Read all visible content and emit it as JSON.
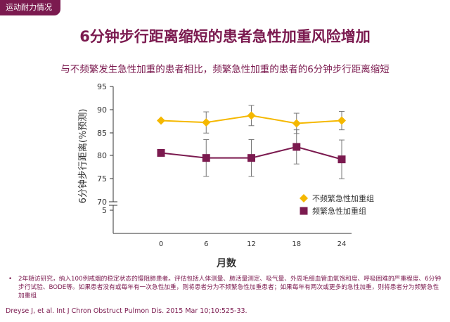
{
  "header_tag": "运动耐力情况",
  "slide_title": "6分钟步行距离缩短的患者急性加重风险增加",
  "subtitle": "与不频繁发生急性加重的患者相比，频繁急性加重的患者的6分钟步行距离缩短",
  "chart_data": {
    "type": "line",
    "xlabel": "月数",
    "ylabel": "6分钟步行距离(%预测)",
    "x": [
      0,
      6,
      12,
      18,
      24
    ],
    "x_ticks": [
      "0",
      "6",
      "12",
      "18",
      "24"
    ],
    "y_ticks": [
      "95",
      "90",
      "85",
      "80",
      "75",
      "70",
      "5"
    ],
    "y_axis_break": true,
    "ylim": [
      70,
      95
    ],
    "grid": false,
    "legend_position": "right",
    "series": [
      {
        "name": "不频繁急性加重组",
        "marker": "diamond",
        "color": "#f5b800",
        "values": [
          87.6,
          87.2,
          88.7,
          87.0,
          87.6
        ],
        "error": [
          0.0,
          2.3,
          2.2,
          2.2,
          2.0
        ]
      },
      {
        "name": "频繁急性加重组",
        "marker": "square",
        "color": "#7b1a4f",
        "values": [
          80.6,
          79.5,
          79.5,
          81.9,
          79.2
        ],
        "error": [
          0.0,
          4.0,
          4.0,
          3.7,
          4.2
        ]
      }
    ]
  },
  "footnote_bullet": "•",
  "footnote": "2年随访研究，纳入100例戒烟的稳定状态的慢阻肺患者。评估包括人体测量、肺活量测定、吸气量、外周毛细血管血氧饱和度、呼吸困难的严重程度、6分钟步行试验、BODE等。如果患者没有或每年有一次急性加重，则将患者分为不频繁急性加重患者；如果每年有两次或更多的急性加重，则将患者分为频繁急性加重组",
  "citation": "Dreyse J, et al. Int J Chron Obstruct Pulmon Dis. 2015 Mar 10;10:525-33.",
  "colors": {
    "accent": "#7b1a4f",
    "series_infrequent": "#f5b800",
    "series_frequent": "#7b1a4f",
    "errorbar": "#777777"
  }
}
